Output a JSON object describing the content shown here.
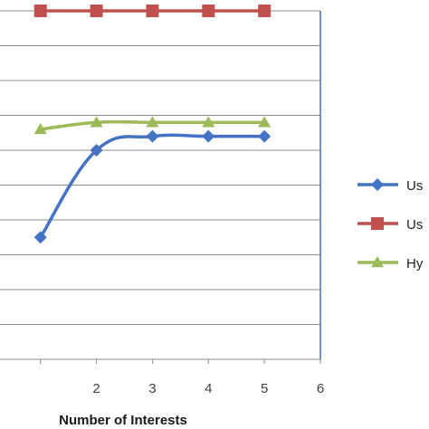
{
  "chart_data": {
    "type": "line",
    "title": "",
    "xlabel": "Number of Interests",
    "ylabel": "",
    "x_ticks": [
      "2",
      "3",
      "4",
      "5",
      "6"
    ],
    "xlim": [
      1.1,
      6
    ],
    "ylim": [
      0,
      10
    ],
    "grid": true,
    "legend_position": "right",
    "series": [
      {
        "name": "Us",
        "color": "#4472C4",
        "marker": "diamond",
        "x": [
          1,
          2,
          3,
          4,
          5
        ],
        "y": [
          3.5,
          6.0,
          6.4,
          6.4,
          6.4
        ]
      },
      {
        "name": "Us",
        "color": "#C0504D",
        "marker": "square",
        "x": [
          1,
          2,
          3,
          4,
          5
        ],
        "y": [
          10,
          10,
          10,
          10,
          10
        ]
      },
      {
        "name": "Hy",
        "color": "#9BBB59",
        "marker": "triangle",
        "x": [
          1,
          2,
          3,
          4,
          5
        ],
        "y": [
          6.6,
          6.8,
          6.8,
          6.8,
          6.8
        ]
      }
    ]
  }
}
